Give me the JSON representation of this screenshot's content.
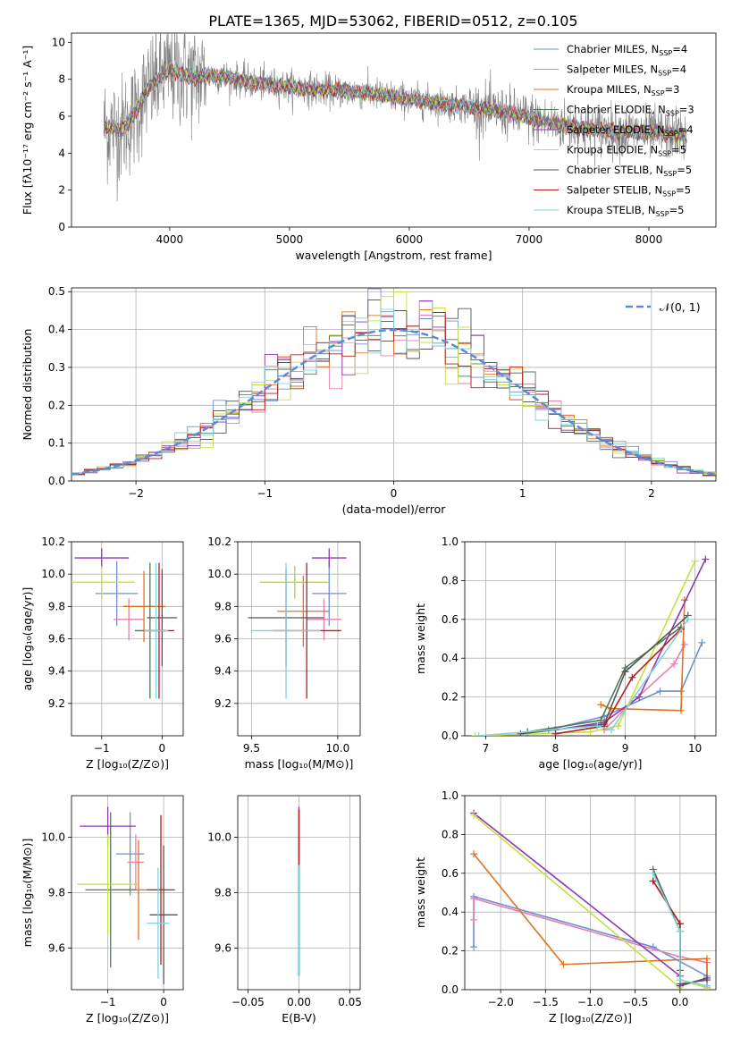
{
  "figure": {
    "title": "PLATE=1365, MJD=53062, FIBERID=0512, z=0.105",
    "colors": [
      "#6f8fd6",
      "#e77fb0",
      "#e0731f",
      "#4e7a58",
      "#8e38b4",
      "#c6e040",
      "#555555",
      "#b41e1e",
      "#7fd3dc"
    ]
  },
  "chart_data": [
    {
      "id": "spectrum",
      "type": "line",
      "xlabel": "wavelength [Angstrom, rest frame]",
      "ylabel": "Flux [fλ10⁻¹⁷ erg cm⁻² s⁻¹ A⁻¹]",
      "xlim": [
        3180,
        8560
      ],
      "ylim": [
        0,
        10.5
      ],
      "xticks": [
        4000,
        5000,
        6000,
        7000,
        8000
      ],
      "yticks": [
        0,
        2,
        4,
        6,
        8,
        10
      ],
      "legend_position": "top-right",
      "legend": [
        {
          "base": "Chabrier MILES, N",
          "sub": "SSP",
          "tail": "=4"
        },
        {
          "base": "Salpeter MILES, N",
          "sub": "SSP",
          "tail": "=4"
        },
        {
          "base": "Kroupa MILES, N",
          "sub": "SSP",
          "tail": "=3"
        },
        {
          "base": "Chabrier ELODIE, N",
          "sub": "SSP",
          "tail": "=3"
        },
        {
          "base": "Salpeter ELODIE, N",
          "sub": "SSP",
          "tail": "=4"
        },
        {
          "base": "Kroupa ELODIE, N",
          "sub": "SSP",
          "tail": "=5"
        },
        {
          "base": "Chabrier STELIB, N",
          "sub": "SSP",
          "tail": "=5"
        },
        {
          "base": "Salpeter STELIB, N",
          "sub": "SSP",
          "tail": "=5"
        },
        {
          "base": "Kroupa STELIB, N",
          "sub": "SSP",
          "tail": "=5"
        }
      ],
      "continuum": {
        "x": [
          3500,
          3600,
          3700,
          3800,
          3900,
          4000,
          4100,
          4200,
          4300,
          4500,
          4700,
          5000,
          5300,
          5600,
          6000,
          6400,
          6800,
          7000,
          7200,
          7400,
          7700,
          8000,
          8300
        ],
        "y": [
          5.4,
          5.3,
          6.0,
          7.3,
          8.0,
          8.5,
          8.3,
          8.1,
          8.2,
          8.1,
          7.8,
          7.6,
          7.4,
          7.3,
          6.9,
          6.6,
          6.2,
          5.9,
          5.6,
          5.4,
          5.2,
          5.1,
          5.0
        ]
      },
      "data_range": [
        3450,
        8320
      ]
    },
    {
      "id": "residuals",
      "type": "histogram",
      "xlabel": "(data-model)/error",
      "ylabel": "Normed distribution",
      "xlim": [
        -2.5,
        2.5
      ],
      "ylim": [
        0,
        0.51
      ],
      "xticks": [
        -2,
        -1,
        0,
        1,
        2
      ],
      "yticks": [
        0.0,
        0.1,
        0.2,
        0.3,
        0.4,
        0.5
      ],
      "bin_width": 0.1,
      "legend_label": "𝒩(0, 1)",
      "reference": {
        "type": "gaussian",
        "mean": 0,
        "sigma": 1,
        "style": "dashed",
        "color": "#5b8bd6"
      }
    },
    {
      "id": "age_vs_Z",
      "type": "errorbar",
      "xlabel": "Z [log₁₀(Z/Z⊙)]",
      "ylabel": "age  [log₁₀(age/yr)]",
      "xlim": [
        -1.5,
        0.35
      ],
      "ylim": [
        9.0,
        10.2
      ],
      "xticks": [
        -1,
        0
      ],
      "yticks": [
        9.2,
        9.4,
        9.6,
        9.8,
        10.0,
        10.2
      ],
      "points": [
        {
          "x": -0.75,
          "y": 9.88,
          "xe": 0.35,
          "ye": 0.2
        },
        {
          "x": -0.55,
          "y": 9.72,
          "xe": 0.25,
          "ye": 0.13
        },
        {
          "x": -0.3,
          "y": 9.8,
          "xe": 0.35,
          "ye": 0.22
        },
        {
          "x": -0.2,
          "y": 9.65,
          "xe": 0.25,
          "ye": 0.42
        },
        {
          "x": -1.0,
          "y": 10.1,
          "xe": 0.45,
          "ye": 0.06
        },
        {
          "x": -1.0,
          "y": 9.95,
          "xe": 0.55,
          "ye": 0.1
        },
        {
          "x": 0.0,
          "y": 9.73,
          "xe": 0.25,
          "ye": 0.3
        },
        {
          "x": -0.05,
          "y": 9.65,
          "xe": 0.25,
          "ye": 0.42
        },
        {
          "x": -0.1,
          "y": 9.65,
          "xe": 0.2,
          "ye": 0.42
        }
      ]
    },
    {
      "id": "age_vs_mass",
      "type": "errorbar",
      "xlabel": "mass [log₁₀(M/M⊙)]",
      "ylabel": "",
      "xlim": [
        9.42,
        10.13
      ],
      "ylim": [
        9.0,
        10.2
      ],
      "xticks": [
        9.5,
        10.0
      ],
      "yticks": [
        9.2,
        9.4,
        9.6,
        9.8,
        10.0,
        10.2
      ],
      "points": [
        {
          "x": 9.95,
          "y": 9.88,
          "xe": 0.1,
          "ye": 0.2
        },
        {
          "x": 9.92,
          "y": 9.72,
          "xe": 0.1,
          "ye": 0.13
        },
        {
          "x": 9.8,
          "y": 9.77,
          "xe": 0.15,
          "ye": 0.22
        },
        {
          "x": 9.75,
          "y": 9.95,
          "xe": 0.2,
          "ye": 0.1
        },
        {
          "x": 9.95,
          "y": 10.1,
          "xe": 0.1,
          "ye": 0.06
        },
        {
          "x": 9.75,
          "y": 9.95,
          "xe": 0.2,
          "ye": 0.1
        },
        {
          "x": 9.7,
          "y": 9.73,
          "xe": 0.22,
          "ye": 0.3
        },
        {
          "x": 9.82,
          "y": 9.65,
          "xe": 0.2,
          "ye": 0.42
        },
        {
          "x": 9.7,
          "y": 9.65,
          "xe": 0.2,
          "ye": 0.42
        }
      ]
    },
    {
      "id": "weight_vs_age",
      "type": "line",
      "xlabel": "age  [log₁₀(age/yr)]",
      "ylabel": "mass weight",
      "xlim": [
        6.7,
        10.3
      ],
      "ylim": [
        0,
        1.0
      ],
      "xticks": [
        7,
        8,
        9,
        10
      ],
      "yticks": [
        0.0,
        0.2,
        0.4,
        0.6,
        0.8,
        1.0
      ],
      "series": [
        {
          "x": [
            7.9,
            8.7,
            9.5,
            9.8,
            10.1
          ],
          "y": [
            0.03,
            0.1,
            0.23,
            0.23,
            0.48
          ]
        },
        {
          "x": [
            8.7,
            9.0,
            9.7,
            9.85
          ],
          "y": [
            0.03,
            0.14,
            0.37,
            0.47
          ]
        },
        {
          "x": [
            8.65,
            8.8,
            9.8,
            9.85
          ],
          "y": [
            0.16,
            0.14,
            0.13,
            0.7
          ]
        },
        {
          "x": [
            7.6,
            8.65,
            9.0,
            9.8
          ],
          "y": [
            0.02,
            0.08,
            0.35,
            0.56
          ]
        },
        {
          "x": [
            8.0,
            8.7,
            9.2,
            10.15
          ],
          "y": [
            0.03,
            0.07,
            0.2,
            0.91
          ]
        },
        {
          "x": [
            6.85,
            8.5,
            8.9,
            10.0
          ],
          "y": [
            0.0,
            0.02,
            0.05,
            0.9
          ]
        },
        {
          "x": [
            7.5,
            8.7,
            9.0,
            9.9
          ],
          "y": [
            0.01,
            0.06,
            0.33,
            0.62
          ]
        },
        {
          "x": [
            8.0,
            8.7,
            9.1,
            9.8
          ],
          "y": [
            0.01,
            0.05,
            0.3,
            0.55
          ]
        },
        {
          "x": [
            6.9,
            8.6,
            8.8,
            9.9
          ],
          "y": [
            0.0,
            0.05,
            0.03,
            0.6
          ]
        }
      ]
    },
    {
      "id": "mass_vs_Z",
      "type": "errorbar",
      "xlabel": "Z [log₁₀(Z/Z⊙)]",
      "ylabel": "mass [log₁₀(M/M⊙)]",
      "xlim": [
        -1.65,
        0.35
      ],
      "ylim": [
        9.45,
        10.15
      ],
      "xticks": [
        -1,
        0
      ],
      "yticks": [
        9.6,
        9.8,
        10.0
      ],
      "points": [
        {
          "x": -0.6,
          "y": 9.94,
          "xe": 0.25,
          "ye": 0.15
        },
        {
          "x": -0.5,
          "y": 9.91,
          "xe": 0.15,
          "ye": 0.1
        },
        {
          "x": -0.45,
          "y": 9.81,
          "xe": 0.45,
          "ye": 0.18
        },
        {
          "x": -0.95,
          "y": 9.81,
          "xe": 0.45,
          "ye": 0.28
        },
        {
          "x": -1.0,
          "y": 10.04,
          "xe": 0.5,
          "ye": 0.07
        },
        {
          "x": -1.0,
          "y": 9.83,
          "xe": 0.55,
          "ye": 0.18
        },
        {
          "x": 0.0,
          "y": 9.72,
          "xe": 0.25,
          "ye": 0.25
        },
        {
          "x": -0.05,
          "y": 9.81,
          "xe": 0.25,
          "ye": 0.27
        },
        {
          "x": -0.1,
          "y": 9.69,
          "xe": 0.2,
          "ye": 0.2
        }
      ]
    },
    {
      "id": "mass_vs_EBV",
      "type": "errorbar",
      "xlabel": "E(B-V)",
      "ylabel": "",
      "xlim": [
        -0.06,
        0.06
      ],
      "ylim": [
        9.45,
        10.15
      ],
      "xticks": [
        -0.05,
        0.0,
        0.05
      ],
      "yticks": [
        9.6,
        9.8,
        10.0
      ],
      "points": [
        {
          "x": 0.0,
          "y": 9.95,
          "xe": 0.0,
          "ye": 0.15
        },
        {
          "x": 0.0,
          "y": 9.9,
          "xe": 0.0,
          "ye": 0.1
        },
        {
          "x": 0.0,
          "y": 9.85,
          "xe": 0.0,
          "ye": 0.2
        },
        {
          "x": 0.0,
          "y": 9.8,
          "xe": 0.0,
          "ye": 0.3
        },
        {
          "x": 0.0,
          "y": 10.05,
          "xe": 0.0,
          "ye": 0.06
        },
        {
          "x": 0.0,
          "y": 9.85,
          "xe": 0.0,
          "ye": 0.2
        },
        {
          "x": 0.0,
          "y": 9.75,
          "xe": 0.0,
          "ye": 0.25
        },
        {
          "x": 0.0,
          "y": 9.8,
          "xe": 0.0,
          "ye": 0.3
        },
        {
          "x": 0.0,
          "y": 9.7,
          "xe": 0.0,
          "ye": 0.2
        }
      ]
    },
    {
      "id": "weight_vs_Z",
      "type": "line",
      "xlabel": "Z [log₁₀(Z/Z⊙)]",
      "ylabel": "mass weight",
      "xlim": [
        -2.4,
        0.4
      ],
      "ylim": [
        0,
        1.0
      ],
      "xticks": [
        -2.0,
        -1.5,
        -1.0,
        -0.5,
        0.0
      ],
      "yticks": [
        0.0,
        0.2,
        0.4,
        0.6,
        0.8,
        1.0
      ],
      "series": [
        {
          "x": [
            -2.3,
            -2.3,
            -0.3,
            0.3,
            0.3
          ],
          "y": [
            0.22,
            0.48,
            0.22,
            0.07,
            0.01
          ]
        },
        {
          "x": [
            -2.3,
            -2.3,
            0.0,
            0.3,
            0.3
          ],
          "y": [
            0.36,
            0.47,
            0.17,
            0.14,
            0.02
          ]
        },
        {
          "x": [
            -2.3,
            -1.3,
            0.3,
            0.3
          ],
          "y": [
            0.7,
            0.13,
            0.16,
            0.01
          ]
        },
        {
          "x": [
            -0.3,
            0.0,
            0.0
          ],
          "y": [
            0.56,
            0.34,
            0.02
          ]
        },
        {
          "x": [
            -2.3,
            0.0,
            0.0,
            0.3
          ],
          "y": [
            0.91,
            0.07,
            0.03,
            0.05
          ]
        },
        {
          "x": [
            -2.3,
            0.0,
            0.0,
            0.0,
            0.3
          ],
          "y": [
            0.9,
            0.01,
            0.02,
            0.05,
            0.01
          ]
        },
        {
          "x": [
            -0.3,
            0.0,
            0.0,
            0.3
          ],
          "y": [
            0.62,
            0.3,
            0.02,
            0.06
          ]
        },
        {
          "x": [
            -0.3,
            0.0,
            0.0
          ],
          "y": [
            0.56,
            0.34,
            0.1
          ]
        },
        {
          "x": [
            -0.3,
            0.0,
            0.0,
            0.3
          ],
          "y": [
            0.6,
            0.3,
            0.05,
            0.02
          ]
        }
      ]
    }
  ]
}
